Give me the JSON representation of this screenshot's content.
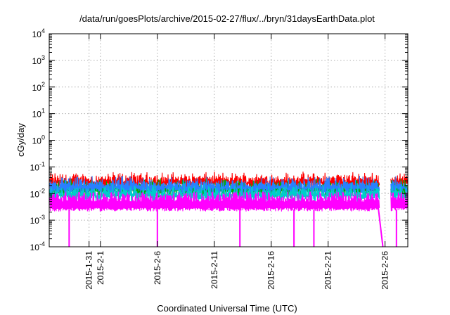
{
  "chart_data": {
    "type": "line",
    "title": "/data/run/goesPlots/archive/2015-02-27/flux/../bryn/31daysEarthData.plot",
    "xlabel": "Coordinated Universal Time (UTC)",
    "ylabel": "cGy/day",
    "yscale": "log",
    "ylim": [
      0.0001,
      10000
    ],
    "xlim": [
      "2015-01-27T12:00",
      "2015-02-28T00:00"
    ],
    "grid": true,
    "x_ticks": [
      {
        "value": "2015-01-31",
        "label": "2015-1-31"
      },
      {
        "value": "2015-02-01",
        "label": "2015-2-1"
      },
      {
        "value": "2015-02-06",
        "label": "2015-2-6"
      },
      {
        "value": "2015-02-11",
        "label": "2015-2-11"
      },
      {
        "value": "2015-02-16",
        "label": "2015-2-16"
      },
      {
        "value": "2015-02-21",
        "label": "2015-2-21"
      },
      {
        "value": "2015-02-26",
        "label": "2015-2-26"
      }
    ],
    "y_ticks": [
      {
        "value": 0.0001,
        "base": "10",
        "exp": "-4"
      },
      {
        "value": 0.001,
        "base": "10",
        "exp": "-3"
      },
      {
        "value": 0.01,
        "base": "10",
        "exp": "-2"
      },
      {
        "value": 0.1,
        "base": "10",
        "exp": "-1"
      },
      {
        "value": 1,
        "base": "10",
        "exp": "0"
      },
      {
        "value": 10,
        "base": "10",
        "exp": "1"
      },
      {
        "value": 100,
        "base": "10",
        "exp": "2"
      },
      {
        "value": 1000,
        "base": "10",
        "exp": "3"
      },
      {
        "value": 10000,
        "base": "10",
        "exp": "4"
      }
    ],
    "data_gap": [
      "2015-02-25T12:00",
      "2015-02-26T12:00"
    ],
    "series": [
      {
        "color": "#ff0000",
        "typical": 0.04,
        "peak": 0.07
      },
      {
        "color": "#00aa00",
        "typical": 0.02,
        "peak": 0.04
      },
      {
        "color": "#2a7fff",
        "typical": 0.025,
        "peak": 0.05
      },
      {
        "color": "#00cccc",
        "typical": 0.013,
        "peak": 0.025
      },
      {
        "color": "#ff00ff",
        "typical": 0.005,
        "floor": 0.0025,
        "peak": 0.012,
        "dropouts": [
          "2015-01-29T06:00",
          "2015-02-06T00:00",
          "2015-02-13T06:00",
          "2015-02-18T00:00",
          "2015-02-19T18:00",
          "2015-02-27T00:00"
        ]
      }
    ]
  }
}
